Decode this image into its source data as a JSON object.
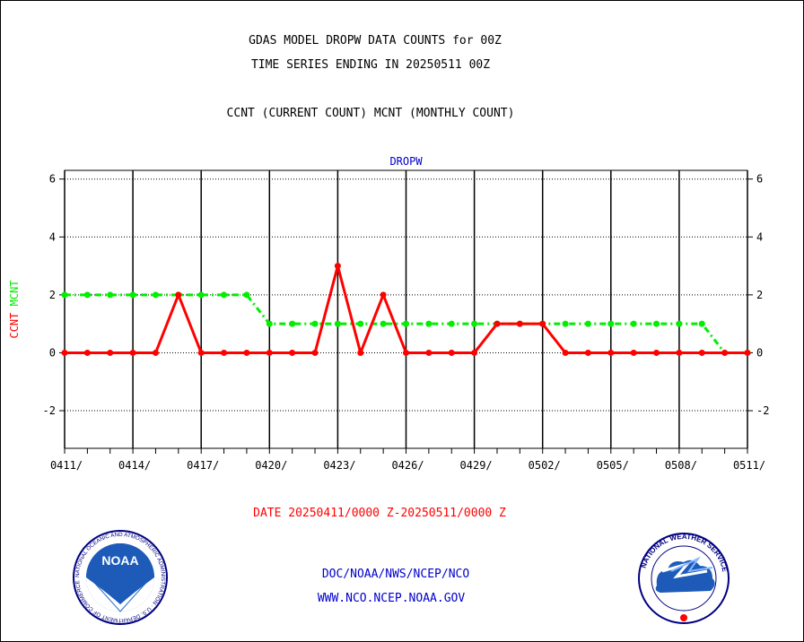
{
  "header": {
    "title_line1": "GDAS MODEL DROPW DATA COUNTS for 00Z",
    "title_line2": "TIME SERIES ENDING IN 20250511 00Z",
    "title_line3": "CCNT (CURRENT COUNT) MCNT (MONTHLY COUNT)"
  },
  "footer": {
    "date_range": "DATE 20250411/0000 Z-20250511/0000 Z",
    "org_line": "DOC/NOAA/NWS/NCEP/NCO",
    "url_line": "WWW.NCO.NCEP.NOAA.GOV"
  },
  "logos": {
    "left": "noaa-logo",
    "left_text": "NOAA",
    "left_ring_text": "NATIONAL OCEANIC AND ATMOSPHERIC ADMINISTRATION · U.S. DEPARTMENT OF COMMERCE",
    "right": "national-weather-service-logo",
    "right_ring_text": "NATIONAL WEATHER SERVICE"
  },
  "colors": {
    "ccnt": "#ff0000",
    "mcnt": "#00ee00",
    "panel_title": "#0000cc",
    "footer_blue": "#0000cc",
    "footer_red": "#ff0000"
  },
  "chart_data": {
    "type": "line",
    "title": "DROPW",
    "ylabel_parts": [
      {
        "text": "CCNT",
        "color": "#ff0000"
      },
      {
        "text": "MCNT",
        "color": "#00ee00"
      }
    ],
    "ylim": [
      -3.3,
      6.3
    ],
    "yticks": [
      -2,
      0,
      2,
      4,
      6
    ],
    "y_tick_labels": [
      "-2",
      "0",
      "2",
      "4",
      "6"
    ],
    "grid": true,
    "x_tick_labels": [
      "0411/",
      "0414/",
      "0417/",
      "0420/",
      "0423/",
      "0426/",
      "0429/",
      "0502/",
      "0505/",
      "0508/",
      "0511/"
    ],
    "x_tick_positions": [
      0,
      3,
      6,
      9,
      12,
      15,
      18,
      21,
      24,
      27,
      30
    ],
    "x_count": 31,
    "series": [
      {
        "name": "CCNT",
        "color": "#ff0000",
        "style": "solid",
        "values": [
          0,
          0,
          0,
          0,
          0,
          2,
          0,
          0,
          0,
          0,
          0,
          0,
          3,
          0,
          2,
          0,
          0,
          0,
          0,
          1,
          1,
          1,
          0,
          0,
          0,
          0,
          0,
          0,
          0,
          0,
          0
        ]
      },
      {
        "name": "MCNT",
        "color": "#00ee00",
        "style": "dashed",
        "values": [
          2,
          2,
          2,
          2,
          2,
          2,
          2,
          2,
          2,
          1,
          1,
          1,
          1,
          1,
          1,
          1,
          1,
          1,
          1,
          1,
          1,
          1,
          1,
          1,
          1,
          1,
          1,
          1,
          1,
          0,
          0
        ]
      }
    ]
  }
}
